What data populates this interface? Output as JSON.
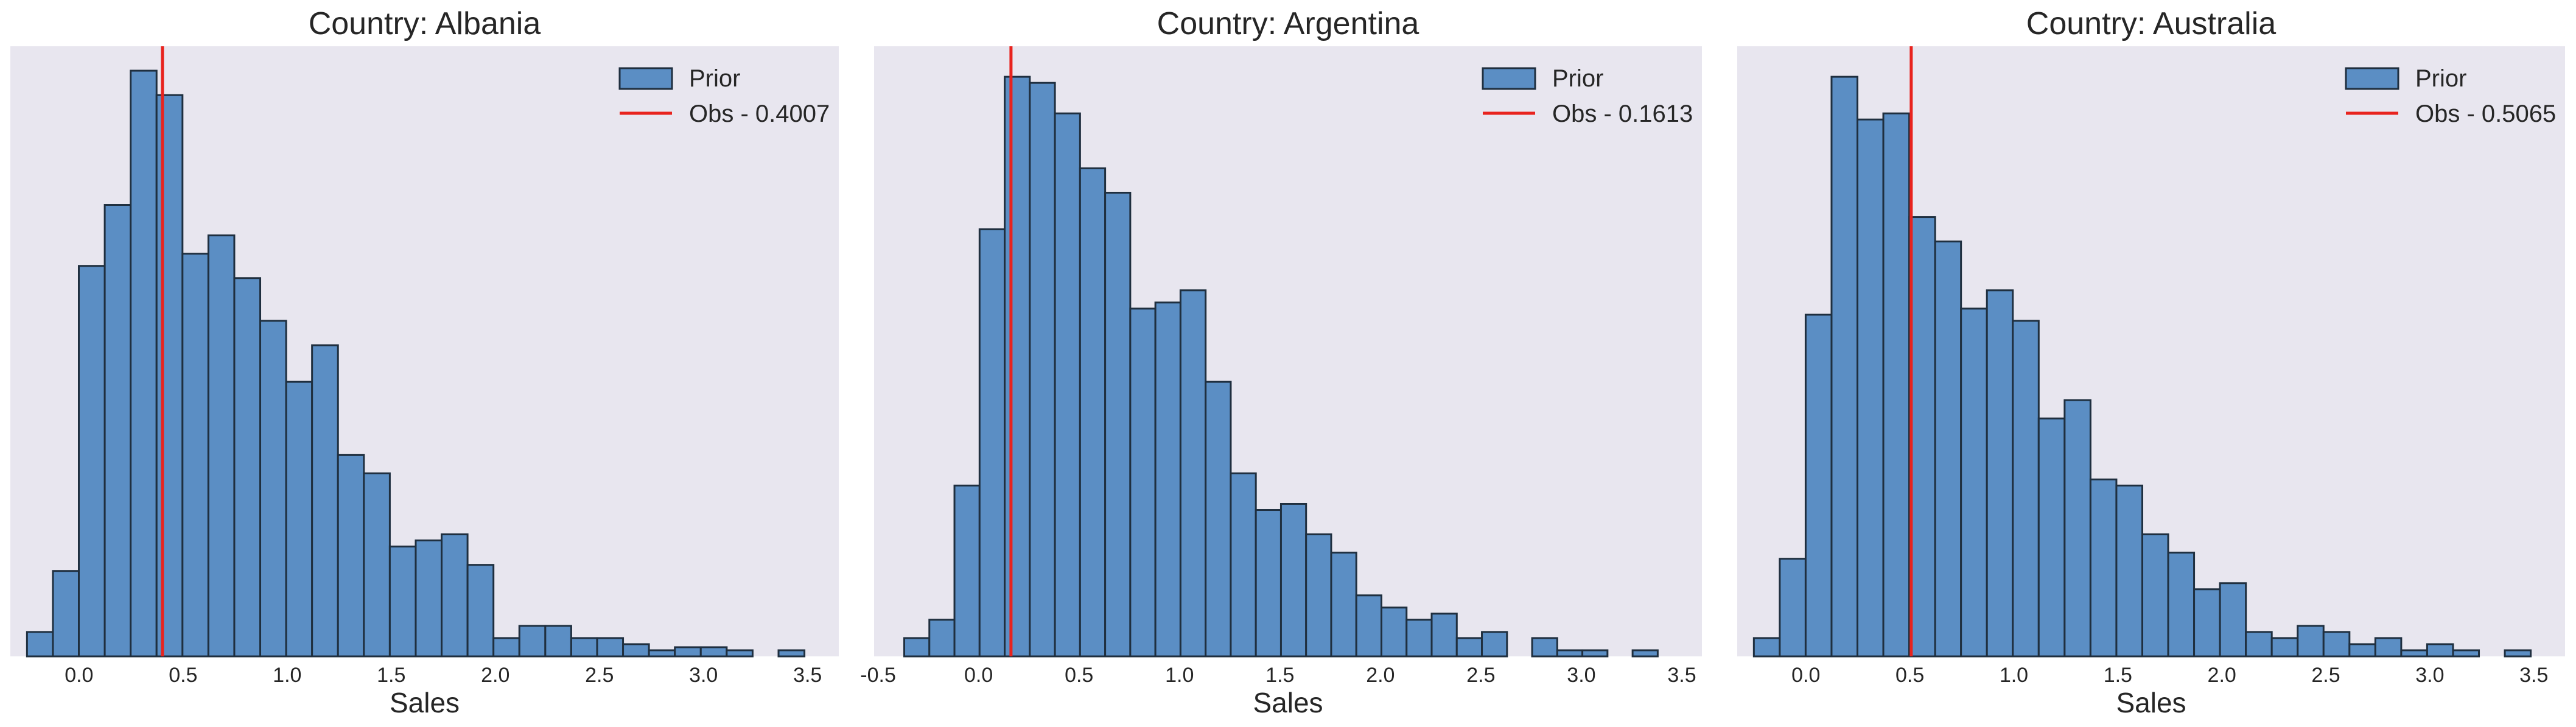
{
  "colors": {
    "axes_background": "#e8e6ef",
    "bar_fill": "#5b8ec4",
    "bar_edge": "#1f2f3f",
    "observed_line": "#e8231e",
    "text": "#262626"
  },
  "chart_data": [
    {
      "type": "bar",
      "subtype": "histogram",
      "title": "Country: Albania",
      "xlabel": "Sales",
      "ylabel": "",
      "xlim": [
        -0.33,
        3.65
      ],
      "ylim": [
        0,
        1.0
      ],
      "y_ticks_shown": false,
      "grid": false,
      "legend_position": "top-right",
      "xticks": [
        0.0,
        0.5,
        1.0,
        1.5,
        2.0,
        2.5,
        3.0,
        3.5
      ],
      "xtick_labels": [
        "0.0",
        "0.5",
        "1.0",
        "1.5",
        "2.0",
        "2.5",
        "3.0",
        "3.5"
      ],
      "bin_start": -0.25,
      "bin_width": 0.1245,
      "relative_heights": [
        0.04,
        0.14,
        0.64,
        0.74,
        0.96,
        0.92,
        0.66,
        0.69,
        0.62,
        0.55,
        0.45,
        0.51,
        0.33,
        0.3,
        0.18,
        0.19,
        0.2,
        0.15,
        0.03,
        0.05,
        0.05,
        0.03,
        0.03,
        0.02,
        0.01,
        0.015,
        0.015,
        0.01,
        0,
        0.01
      ],
      "series": [
        {
          "name": "Prior",
          "kind": "histogram"
        },
        {
          "name": "Obs - 0.4007",
          "kind": "vertical-line",
          "x": 0.4007
        }
      ]
    },
    {
      "type": "bar",
      "subtype": "histogram",
      "title": "Country: Argentina",
      "xlabel": "Sales",
      "ylabel": "",
      "xlim": [
        -0.52,
        3.6
      ],
      "ylim": [
        0,
        1.0
      ],
      "y_ticks_shown": false,
      "grid": false,
      "legend_position": "top-right",
      "xticks": [
        -0.5,
        0.0,
        0.5,
        1.0,
        1.5,
        2.0,
        2.5,
        3.0,
        3.5
      ],
      "xtick_labels": [
        "-0.5",
        "0.0",
        "0.5",
        "1.0",
        "1.5",
        "2.0",
        "2.5",
        "3.0",
        "3.5"
      ],
      "bin_start": -0.37,
      "bin_width": 0.125,
      "relative_heights": [
        0.03,
        0.06,
        0.28,
        0.7,
        0.95,
        0.94,
        0.89,
        0.8,
        0.76,
        0.57,
        0.58,
        0.6,
        0.45,
        0.3,
        0.24,
        0.25,
        0.2,
        0.17,
        0.1,
        0.08,
        0.06,
        0.07,
        0.03,
        0.04,
        0,
        0.03,
        0.01,
        0.01,
        0,
        0.01
      ],
      "series": [
        {
          "name": "Prior",
          "kind": "histogram"
        },
        {
          "name": "Obs - 0.1613",
          "kind": "vertical-line",
          "x": 0.1613
        }
      ]
    },
    {
      "type": "bar",
      "subtype": "histogram",
      "title": "Country: Australia",
      "xlabel": "Sales",
      "ylabel": "",
      "xlim": [
        -0.33,
        3.65
      ],
      "ylim": [
        0,
        1.0
      ],
      "y_ticks_shown": false,
      "grid": false,
      "legend_position": "top-right",
      "xticks": [
        0.0,
        0.5,
        1.0,
        1.5,
        2.0,
        2.5,
        3.0,
        3.5
      ],
      "xtick_labels": [
        "0.0",
        "0.5",
        "1.0",
        "1.5",
        "2.0",
        "2.5",
        "3.0",
        "3.5"
      ],
      "bin_start": -0.25,
      "bin_width": 0.1245,
      "relative_heights": [
        0.03,
        0.16,
        0.56,
        0.95,
        0.88,
        0.89,
        0.72,
        0.68,
        0.57,
        0.6,
        0.55,
        0.39,
        0.42,
        0.29,
        0.28,
        0.2,
        0.17,
        0.11,
        0.12,
        0.04,
        0.03,
        0.05,
        0.04,
        0.02,
        0.03,
        0.01,
        0.02,
        0.01,
        0,
        0.01
      ],
      "series": [
        {
          "name": "Prior",
          "kind": "histogram"
        },
        {
          "name": "Obs - 0.5065",
          "kind": "vertical-line",
          "x": 0.5065
        }
      ]
    }
  ]
}
